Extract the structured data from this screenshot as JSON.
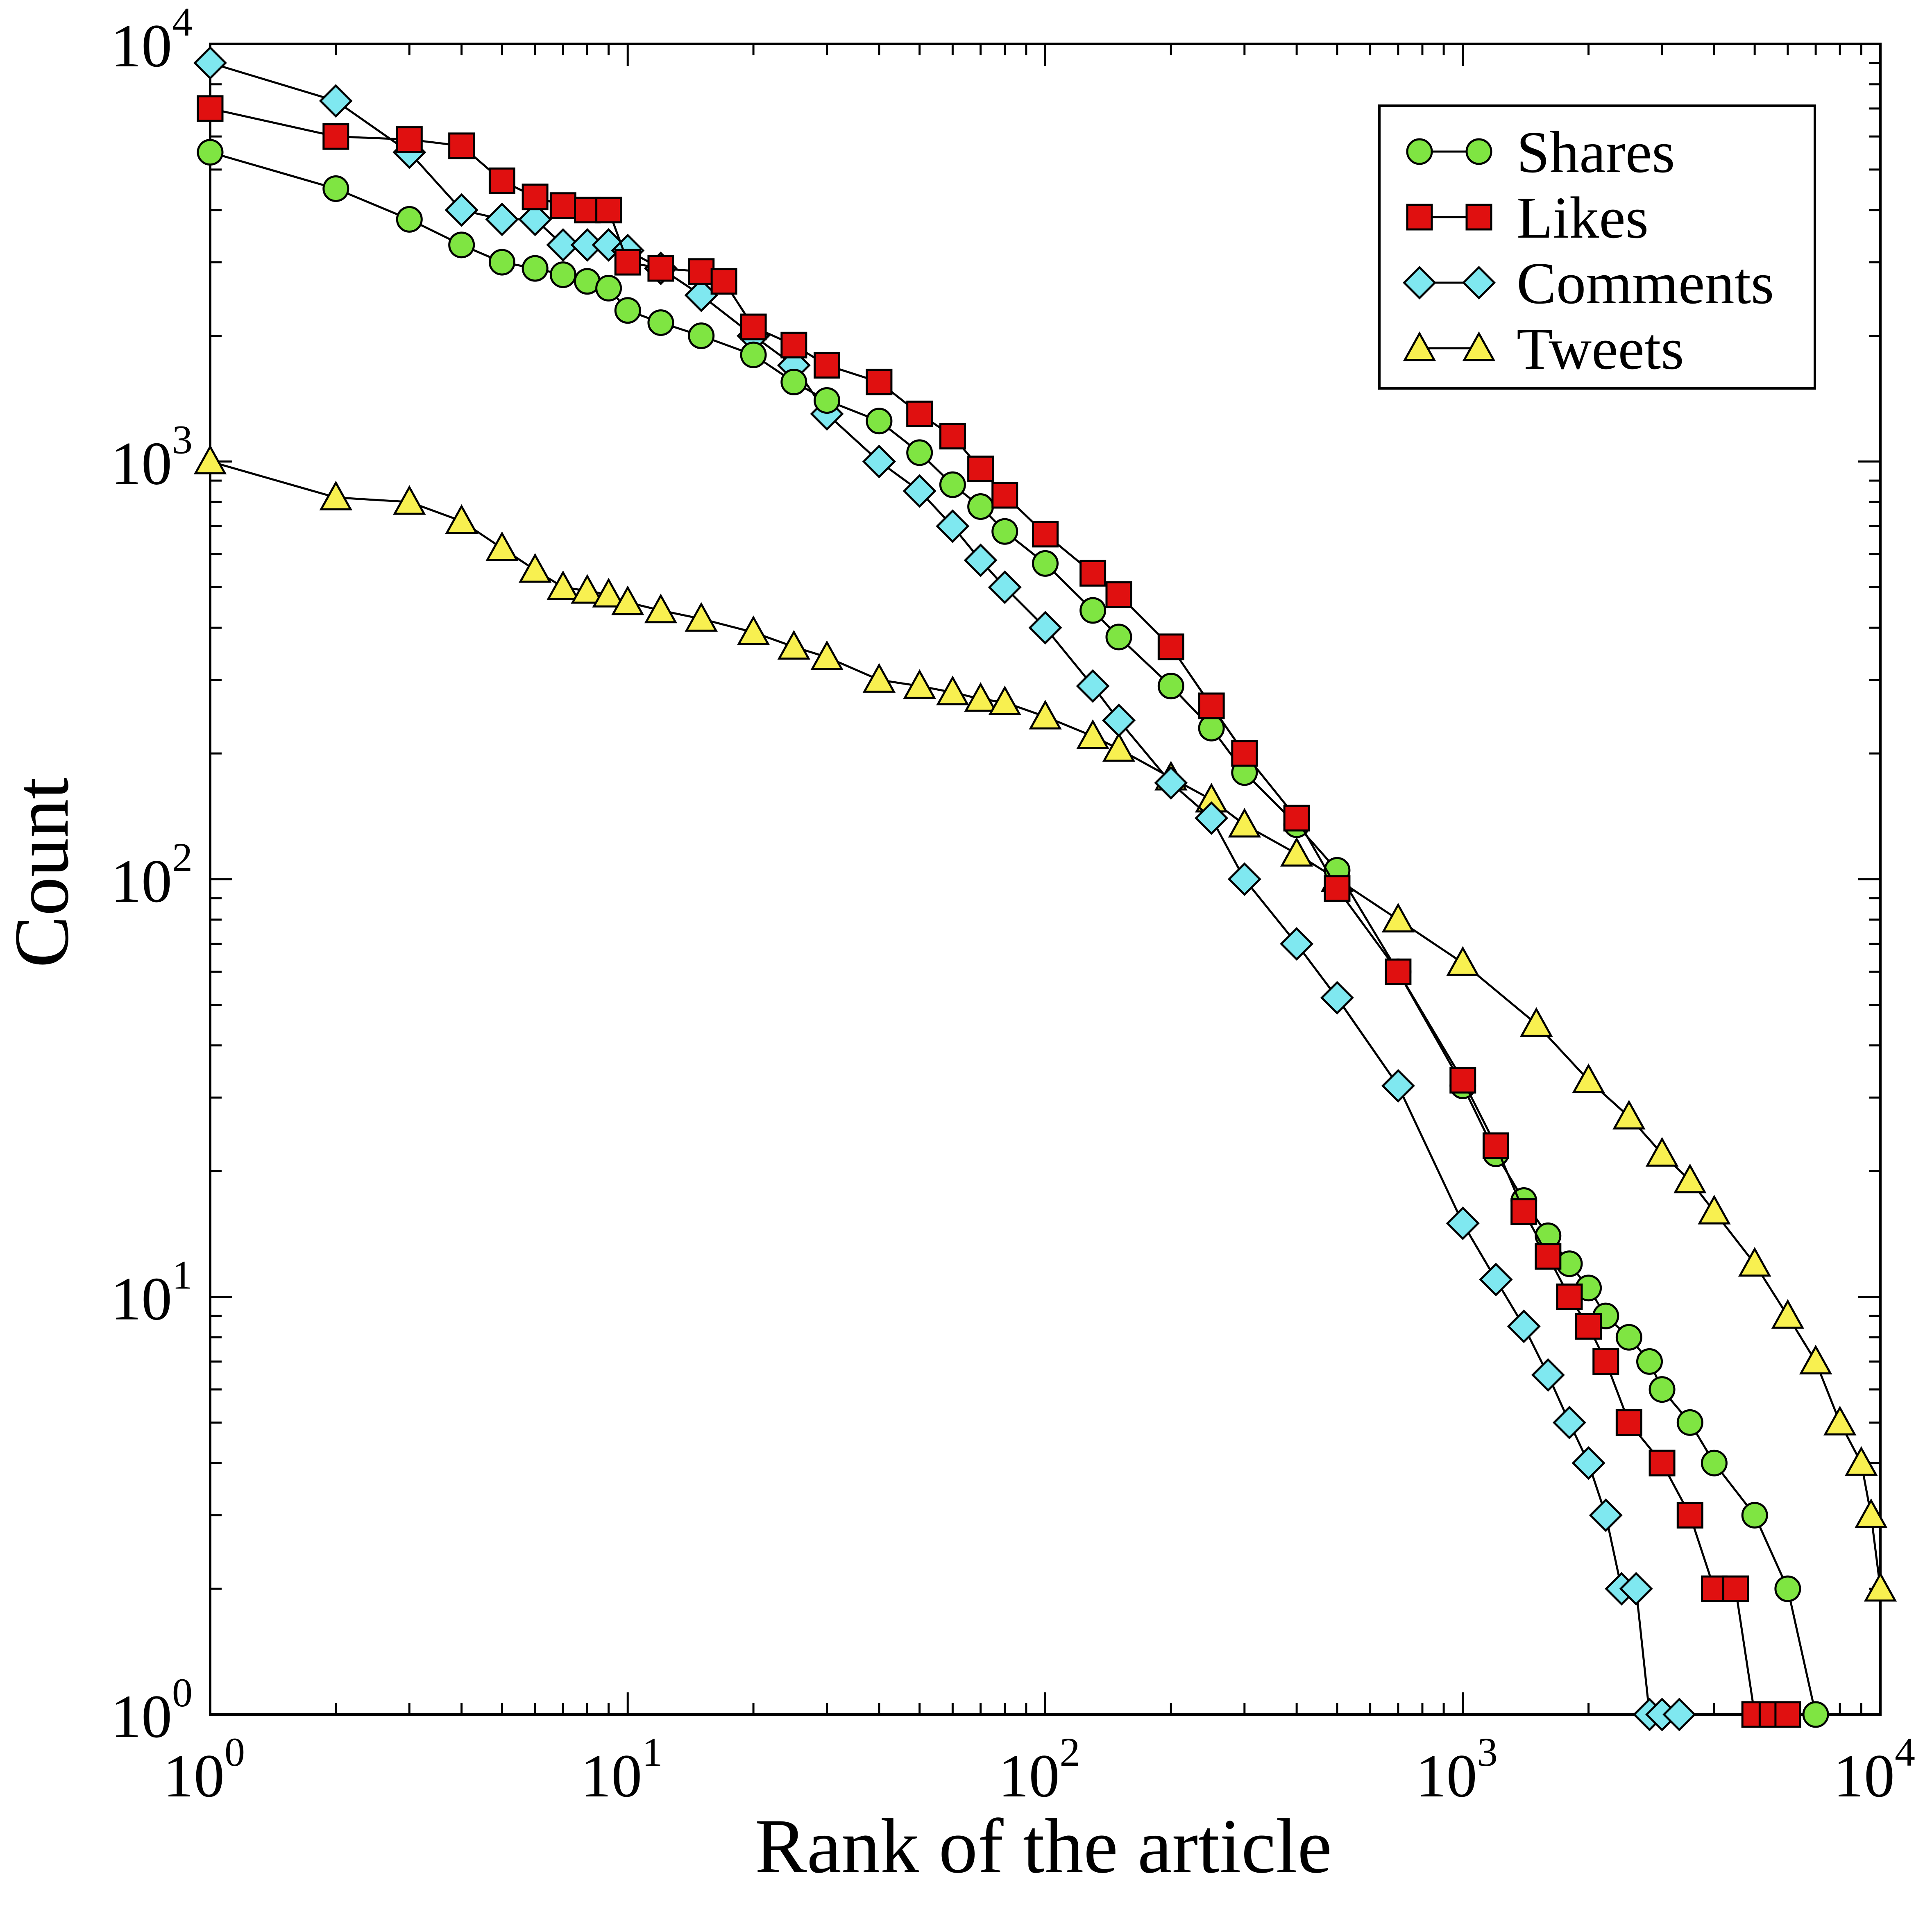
{
  "chart_data": {
    "type": "scatter",
    "title": "",
    "xlabel": "Rank of the article",
    "ylabel": "Count",
    "x_scale": "log",
    "y_scale": "log",
    "xlim": [
      1,
      10000
    ],
    "ylim": [
      1,
      10000
    ],
    "x_ticks": [
      {
        "value": 1,
        "base": "10",
        "exp": "0"
      },
      {
        "value": 10,
        "base": "10",
        "exp": "1"
      },
      {
        "value": 100,
        "base": "10",
        "exp": "2"
      },
      {
        "value": 1000,
        "base": "10",
        "exp": "3"
      },
      {
        "value": 10000,
        "base": "10",
        "exp": "4"
      }
    ],
    "y_ticks": [
      {
        "value": 1,
        "base": "10",
        "exp": "0"
      },
      {
        "value": 10,
        "base": "10",
        "exp": "1"
      },
      {
        "value": 100,
        "base": "10",
        "exp": "2"
      },
      {
        "value": 1000,
        "base": "10",
        "exp": "3"
      },
      {
        "value": 10000,
        "base": "10",
        "exp": "4"
      }
    ],
    "grid": false,
    "legend_position": "top-right",
    "series": [
      {
        "name": "Shares",
        "marker": "circle",
        "color": "#7FE542",
        "x": [
          1,
          2,
          3,
          4,
          5,
          6,
          7,
          8,
          9,
          10,
          12,
          15,
          20,
          25,
          30,
          40,
          50,
          60,
          70,
          80,
          100,
          130,
          150,
          200,
          250,
          300,
          400,
          500,
          700,
          1000,
          1200,
          1400,
          1600,
          1800,
          2000,
          2200,
          2500,
          2800,
          3000,
          3500,
          4000,
          5000,
          6000,
          7000
        ],
        "y": [
          5500,
          4500,
          3800,
          3300,
          3000,
          2900,
          2800,
          2700,
          2600,
          2300,
          2150,
          2000,
          1800,
          1550,
          1400,
          1250,
          1050,
          880,
          780,
          680,
          570,
          440,
          380,
          290,
          230,
          180,
          135,
          105,
          60,
          32,
          22,
          17,
          14,
          12,
          10.5,
          9,
          8,
          7,
          6,
          5,
          4,
          3,
          2,
          1
        ]
      },
      {
        "name": "Likes",
        "marker": "square",
        "color": "#E01010",
        "x": [
          1,
          2,
          3,
          4,
          5,
          6,
          7,
          8,
          9,
          10,
          12,
          15,
          17,
          20,
          25,
          30,
          40,
          50,
          60,
          70,
          80,
          100,
          130,
          150,
          200,
          250,
          300,
          400,
          500,
          700,
          1000,
          1200,
          1400,
          1600,
          1800,
          2000,
          2200,
          2500,
          3000,
          3500,
          4000,
          4500,
          5000,
          5500,
          6000
        ],
        "y": [
          7000,
          6000,
          5900,
          5700,
          4700,
          4300,
          4100,
          4000,
          4000,
          3000,
          2900,
          2850,
          2700,
          2100,
          1900,
          1700,
          1550,
          1300,
          1150,
          960,
          830,
          670,
          540,
          480,
          360,
          260,
          200,
          140,
          95,
          60,
          33,
          23,
          16,
          12.5,
          10,
          8.5,
          7,
          5,
          4,
          3,
          2,
          2,
          1,
          1,
          1
        ]
      },
      {
        "name": "Comments",
        "marker": "diamond",
        "color": "#7FE8F0",
        "x": [
          1,
          2,
          3,
          4,
          5,
          6,
          7,
          8,
          9,
          10,
          12,
          15,
          20,
          25,
          30,
          40,
          50,
          60,
          70,
          80,
          100,
          130,
          150,
          200,
          250,
          300,
          400,
          500,
          700,
          1000,
          1200,
          1400,
          1600,
          1800,
          2000,
          2200,
          2400,
          2600,
          2800,
          3000,
          3300
        ],
        "y": [
          9000,
          7300,
          5500,
          4000,
          3800,
          3800,
          3300,
          3300,
          3300,
          3200,
          2900,
          2500,
          2000,
          1700,
          1300,
          1000,
          850,
          700,
          580,
          500,
          400,
          290,
          240,
          170,
          140,
          100,
          70,
          52,
          32,
          15,
          11,
          8.5,
          6.5,
          5,
          4,
          3,
          2,
          2,
          1,
          1,
          1
        ]
      },
      {
        "name": "Tweets",
        "marker": "triangle",
        "color": "#F8F050",
        "x": [
          1,
          2,
          3,
          4,
          5,
          6,
          7,
          8,
          9,
          10,
          12,
          15,
          20,
          25,
          30,
          40,
          50,
          60,
          70,
          80,
          100,
          130,
          150,
          200,
          250,
          300,
          400,
          500,
          700,
          1000,
          1500,
          2000,
          2500,
          3000,
          3500,
          4000,
          5000,
          6000,
          7000,
          8000,
          9000,
          9500,
          10000
        ],
        "y": [
          1000,
          820,
          800,
          720,
          620,
          550,
          500,
          490,
          480,
          460,
          440,
          420,
          390,
          360,
          340,
          300,
          290,
          280,
          270,
          265,
          245,
          220,
          205,
          175,
          155,
          135,
          115,
          100,
          80,
          63,
          45,
          33,
          27,
          22,
          19,
          16,
          12,
          9,
          7,
          5,
          4,
          3,
          2
        ]
      }
    ]
  }
}
